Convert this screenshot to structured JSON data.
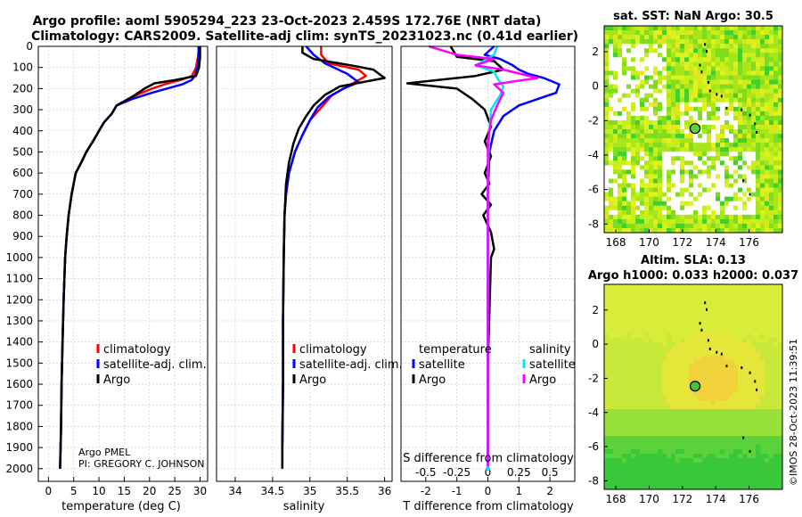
{
  "title": {
    "line1": "Argo profile: aoml 5905294_223 23-Oct-2023 2.459S 172.76E (NRT data)",
    "line2": "Climatology: CARS2009. Satellite-adj clim: synTS_20231023.nc (0.41d earlier)"
  },
  "credit": {
    "line1": "Argo PMEL",
    "line2": "PI: GREGORY C. JOHNSON"
  },
  "watermark": "©IMOS 28-Oct-2023 11:39:51",
  "colors": {
    "climatology": "#ff0000",
    "satellite": "#0000ff",
    "argo": "#000000",
    "T_sat": "#00e5ff",
    "S_sat": "#ff00ff"
  },
  "chart_data": [
    {
      "type": "line",
      "id": "temperature",
      "xlabel": "temperature (deg C)",
      "ylabel": "",
      "xlim": [
        -2,
        31.5
      ],
      "ylim": [
        0,
        2060
      ],
      "xticks": [
        0,
        5,
        10,
        15,
        20,
        25,
        30
      ],
      "yticks": [
        0,
        100,
        200,
        300,
        400,
        500,
        600,
        700,
        800,
        900,
        1000,
        1100,
        1200,
        1300,
        1400,
        1500,
        1600,
        1700,
        1800,
        1900,
        2000
      ],
      "legend": [
        "climatology",
        "satellite-adj. clim.",
        "Argo"
      ],
      "series": [
        {
          "name": "climatology",
          "x": [
            29.8,
            29.6,
            29.2,
            28.4,
            26.0,
            23.0,
            20.5,
            16.5,
            13.5,
            12.5,
            11.0,
            10.0,
            8.8,
            7.5,
            6.5,
            5.4,
            4.6,
            4.0,
            3.6,
            3.3,
            3.0,
            2.8,
            2.6,
            2.5,
            2.4,
            2.3
          ],
          "y": [
            0,
            50,
            100,
            140,
            160,
            180,
            200,
            240,
            280,
            320,
            360,
            400,
            450,
            500,
            550,
            600,
            700,
            800,
            900,
            1000,
            1200,
            1400,
            1600,
            1800,
            1900,
            2000
          ]
        },
        {
          "name": "satellite-adj. clim.",
          "x": [
            29.7,
            29.7,
            29.5,
            29.0,
            28.3,
            26.5,
            20.5,
            16.5,
            13.5,
            12.5,
            11.0,
            10.0,
            8.8,
            7.5,
            6.5,
            5.4,
            4.6,
            4.0,
            3.6,
            3.3,
            3.0,
            2.8,
            2.6,
            2.5,
            2.4,
            2.3
          ],
          "y": [
            0,
            50,
            100,
            140,
            160,
            180,
            220,
            250,
            280,
            320,
            360,
            400,
            450,
            500,
            550,
            600,
            700,
            800,
            900,
            1000,
            1200,
            1400,
            1600,
            1800,
            1900,
            2000
          ]
        },
        {
          "name": "Argo",
          "x": [
            30.0,
            30.0,
            29.8,
            29.2,
            25.0,
            21.0,
            19.0,
            16.5,
            13.5,
            12.5,
            11.0,
            10.0,
            8.8,
            7.5,
            6.5,
            5.4,
            4.6,
            4.0,
            3.6,
            3.3,
            3.0,
            2.8,
            2.6,
            2.5,
            2.4,
            2.3
          ],
          "y": [
            0,
            50,
            100,
            140,
            160,
            175,
            200,
            240,
            280,
            320,
            360,
            400,
            450,
            500,
            550,
            600,
            700,
            800,
            900,
            1000,
            1200,
            1400,
            1600,
            1800,
            1900,
            2000
          ]
        }
      ]
    },
    {
      "type": "line",
      "id": "salinity",
      "xlabel": "salinity",
      "xlim": [
        33.75,
        36.1
      ],
      "ylim": [
        0,
        2060
      ],
      "xticks": [
        34,
        34.5,
        35,
        35.5,
        36
      ],
      "legend": [
        "climatology",
        "satellite-adj. clim.",
        "Argo"
      ],
      "series": [
        {
          "name": "climatology",
          "x": [
            35.15,
            35.15,
            35.25,
            35.65,
            35.75,
            35.55,
            35.3,
            35.15,
            35.0,
            34.9,
            34.8,
            34.72,
            34.68,
            34.66,
            34.65,
            34.64,
            34.64,
            34.63,
            34.63
          ],
          "y": [
            0,
            40,
            80,
            110,
            140,
            180,
            230,
            290,
            350,
            420,
            500,
            600,
            700,
            800,
            1000,
            1300,
            1600,
            1900,
            2000
          ]
        },
        {
          "name": "satellite-adj. clim.",
          "x": [
            34.95,
            35.05,
            35.2,
            35.5,
            35.65,
            35.45,
            35.25,
            35.1,
            35.0,
            34.9,
            34.8,
            34.72,
            34.68,
            34.66,
            34.65,
            34.64,
            34.64,
            34.63,
            34.63
          ],
          "y": [
            0,
            40,
            80,
            130,
            170,
            200,
            240,
            290,
            350,
            420,
            500,
            600,
            700,
            800,
            1000,
            1300,
            1600,
            1900,
            2000
          ]
        },
        {
          "name": "Argo",
          "x": [
            34.9,
            34.9,
            35.05,
            35.55,
            35.85,
            36.0,
            35.4,
            35.2,
            35.05,
            34.95,
            34.85,
            34.78,
            34.72,
            34.68,
            34.66,
            34.65,
            34.64,
            34.64,
            34.63,
            34.63
          ],
          "y": [
            0,
            30,
            60,
            90,
            110,
            150,
            190,
            230,
            280,
            330,
            390,
            460,
            550,
            650,
            800,
            1000,
            1300,
            1600,
            1900,
            2000
          ]
        }
      ]
    },
    {
      "type": "line",
      "id": "difference",
      "xlabel": "T difference from climatology",
      "xlabel2": "S difference from climatology",
      "xlim": [
        -2.8,
        2.8
      ],
      "ylim": [
        0,
        2060
      ],
      "xticks": [
        -2,
        -1,
        0,
        1,
        2
      ],
      "xticks_S": [
        "-0.5",
        "-0.25",
        "0",
        "0.25",
        "0.5"
      ],
      "legend_T_title": "temperature",
      "legend_S_title": "salinity",
      "legend_T": [
        "satellite",
        "Argo"
      ],
      "legend_S": [
        "satellite",
        "Argo"
      ],
      "series": [
        {
          "name": "T satellite",
          "x": [
            0.2,
            -0.1,
            0.4,
            0.8,
            1.0,
            1.3,
            1.8,
            2.3,
            2.2,
            1.0,
            0.5,
            0.2,
            0.05,
            0.0,
            0.0,
            0.0
          ],
          "y": [
            0,
            40,
            60,
            90,
            110,
            130,
            150,
            180,
            220,
            280,
            330,
            400,
            500,
            700,
            1200,
            2000
          ]
        },
        {
          "name": "T Argo",
          "x": [
            -1.2,
            -1.0,
            0.2,
            0.5,
            -0.4,
            -2.6,
            -1.0,
            -0.5,
            -0.1,
            0.1,
            -0.1,
            0.1,
            -0.1,
            0.05,
            -0.2,
            0.1,
            -0.15,
            0.1,
            0.2,
            0.1,
            0.0,
            0.0
          ],
          "y": [
            0,
            50,
            70,
            110,
            140,
            175,
            200,
            250,
            300,
            380,
            450,
            520,
            600,
            650,
            700,
            750,
            800,
            880,
            960,
            1000,
            1500,
            2000
          ]
        },
        {
          "name": "S satellite",
          "x": [
            0.3,
            0.2,
            -0.4,
            0.2,
            0.3,
            0.5,
            0.4,
            0.1,
            0.05,
            0.0,
            0.0
          ],
          "y": [
            0,
            40,
            90,
            120,
            150,
            190,
            230,
            300,
            400,
            600,
            2000
          ]
        },
        {
          "name": "S Argo",
          "x": [
            -1.9,
            -1.0,
            0.2,
            -0.4,
            0.5,
            1.6,
            0.2,
            0.5,
            0.3,
            0.1,
            0.0,
            0.0,
            0.0
          ],
          "y": [
            0,
            40,
            60,
            90,
            110,
            150,
            180,
            220,
            280,
            350,
            450,
            700,
            2000
          ]
        }
      ]
    },
    {
      "type": "heatmap",
      "id": "sst_map",
      "title": "sat. SST: NaN Argo: 30.5",
      "xlim": [
        167.3,
        178
      ],
      "ylim": [
        -8.5,
        3.5
      ],
      "xticks": [
        168,
        170,
        172,
        174,
        176
      ],
      "yticks": [
        -8,
        -6,
        -4,
        -2,
        0,
        2
      ],
      "argo_position": [
        172.76,
        -2.459
      ]
    },
    {
      "type": "heatmap",
      "id": "sla_map",
      "title1": "Altim. SLA: 0.13",
      "title2": "Argo h1000: 0.033 h2000: 0.037",
      "xlim": [
        167.3,
        178
      ],
      "ylim": [
        -8.5,
        3.5
      ],
      "xticks": [
        168,
        170,
        172,
        174,
        176
      ],
      "yticks": [
        -8,
        -6,
        -4,
        -2,
        0,
        2
      ],
      "argo_position": [
        172.76,
        -2.459
      ]
    }
  ]
}
